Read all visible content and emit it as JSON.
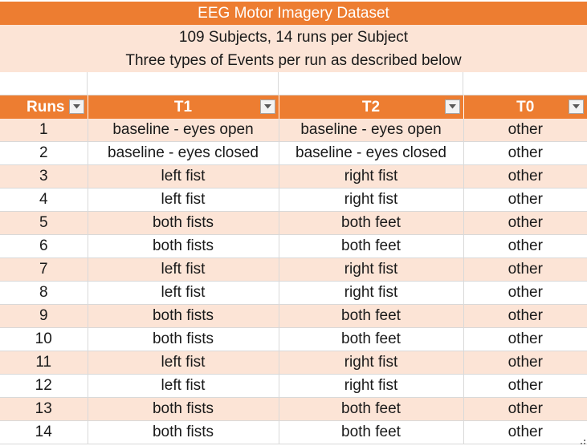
{
  "sheet": {
    "title": "EEG Motor Imagery Dataset",
    "subtitle1": "109 Subjects, 14 runs per Subject",
    "subtitle2": "Three types of Events per run as described below"
  },
  "table": {
    "headers": [
      "Runs",
      "T1",
      "T2",
      "T0"
    ],
    "rows": [
      [
        "1",
        "baseline - eyes open",
        "baseline - eyes open",
        "other"
      ],
      [
        "2",
        "baseline - eyes closed",
        "baseline - eyes closed",
        "other"
      ],
      [
        "3",
        "left fist",
        "right fist",
        "other"
      ],
      [
        "4",
        "left fist",
        "right fist",
        "other"
      ],
      [
        "5",
        "both fists",
        "both feet",
        "other"
      ],
      [
        "6",
        "both fists",
        "both feet",
        "other"
      ],
      [
        "7",
        "left fist",
        "right fist",
        "other"
      ],
      [
        "8",
        "left fist",
        "right fist",
        "other"
      ],
      [
        "9",
        "both fists",
        "both feet",
        "other"
      ],
      [
        "10",
        "both fists",
        "both feet",
        "other"
      ],
      [
        "11",
        "left fist",
        "right fist",
        "other"
      ],
      [
        "12",
        "left fist",
        "right fist",
        "other"
      ],
      [
        "13",
        "both fists",
        "both feet",
        "other"
      ],
      [
        "14",
        "both fists",
        "both feet",
        "other"
      ]
    ]
  },
  "colors": {
    "header_orange": "#ED7D31",
    "band_light": "#FCE4D6",
    "grid": "#d9d9d9"
  },
  "icons": {
    "filter": "filter-dropdown-icon",
    "resize": "resize-handle-icon"
  }
}
